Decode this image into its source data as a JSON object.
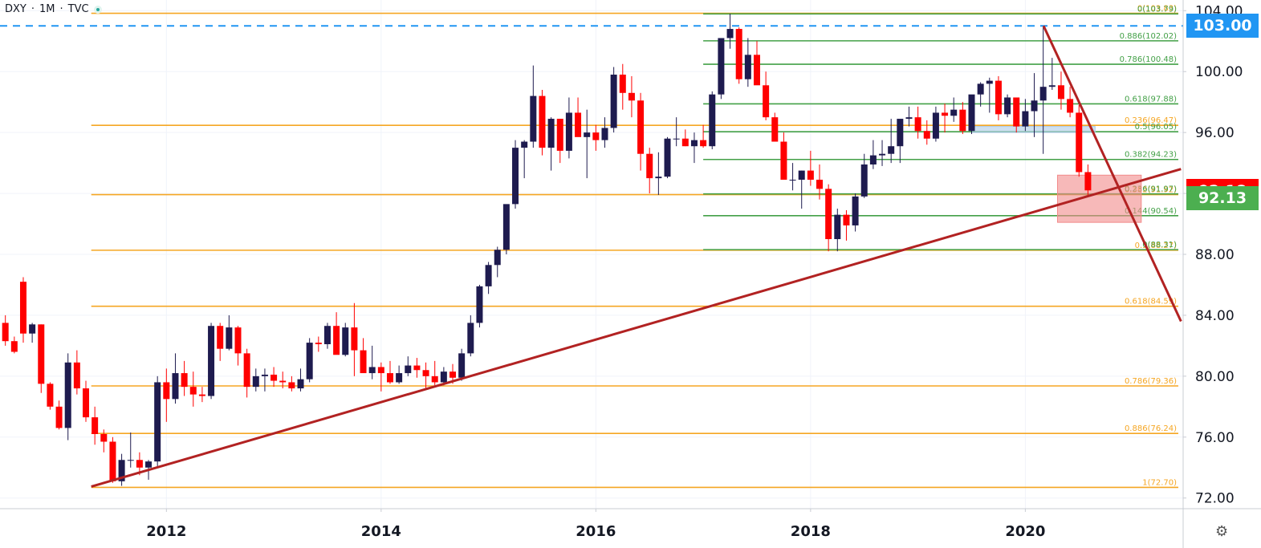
{
  "header": {
    "symbol": "DXY",
    "interval": "1M",
    "source": "TVC"
  },
  "price_tags": [
    {
      "label": "103.00",
      "color": "#2196f3",
      "price": 103.0
    },
    {
      "label": "92.18",
      "color": "#ff0000",
      "price": 92.18
    },
    {
      "label": "92.13",
      "color": "#4caf50",
      "price": 92.13
    }
  ],
  "chart_data": {
    "type": "candlestick",
    "title": "",
    "xlabel": "",
    "ylabel": "",
    "ylim": [
      71.3,
      104.7
    ],
    "y_ticks": [
      72,
      76,
      80,
      84,
      88,
      92,
      96,
      100,
      104
    ],
    "y_tick_labels": [
      "72.00",
      "76.00",
      "80.00",
      "84.00",
      "88.00",
      "92.00",
      "96.00",
      "100.00",
      "104.00"
    ],
    "x_ticks": [
      2012,
      2014,
      2016,
      2018,
      2020
    ],
    "x_tick_labels": [
      "2012",
      "2014",
      "2016",
      "2018",
      "2020"
    ],
    "xlim": [
      2010.45,
      2021.47
    ],
    "grid": true,
    "candles_first_month": [
      2010,
      7
    ],
    "candles_ohlc": [
      [
        83.5,
        84.0,
        82.0,
        82.3
      ],
      [
        82.3,
        82.6,
        81.5,
        81.6
      ],
      [
        86.2,
        86.5,
        82.2,
        82.8
      ],
      [
        82.8,
        83.5,
        82.2,
        83.4
      ],
      [
        83.4,
        83.4,
        78.9,
        79.5
      ],
      [
        79.5,
        79.6,
        77.8,
        78.0
      ],
      [
        78.0,
        78.4,
        76.5,
        76.6
      ],
      [
        76.6,
        81.5,
        75.8,
        80.9
      ],
      [
        80.9,
        81.7,
        78.8,
        79.2
      ],
      [
        79.2,
        79.7,
        77.0,
        77.3
      ],
      [
        77.3,
        78.0,
        75.5,
        76.2
      ],
      [
        76.2,
        76.5,
        75.0,
        75.7
      ],
      [
        75.7,
        76.0,
        73.0,
        73.1
      ],
      [
        73.1,
        74.9,
        72.8,
        74.5
      ],
      [
        74.5,
        76.3,
        74.0,
        74.5
      ],
      [
        74.5,
        75.0,
        73.5,
        74.0
      ],
      [
        74.0,
        74.5,
        73.2,
        74.4
      ],
      [
        74.4,
        80.0,
        74.0,
        79.6
      ],
      [
        79.6,
        80.5,
        77.0,
        78.5
      ],
      [
        78.5,
        81.5,
        78.2,
        80.2
      ],
      [
        80.2,
        81.0,
        78.7,
        79.3
      ],
      [
        79.3,
        80.3,
        78.0,
        78.8
      ],
      [
        78.8,
        79.3,
        78.3,
        78.7
      ],
      [
        78.7,
        83.5,
        78.5,
        83.3
      ],
      [
        83.3,
        83.5,
        81.0,
        81.8
      ],
      [
        81.8,
        84.0,
        81.7,
        83.2
      ],
      [
        83.2,
        83.3,
        80.7,
        81.5
      ],
      [
        81.5,
        81.8,
        78.6,
        79.3
      ],
      [
        79.3,
        80.5,
        79.0,
        80.0
      ],
      [
        80.0,
        80.5,
        79.0,
        80.1
      ],
      [
        80.1,
        80.6,
        79.3,
        79.7
      ],
      [
        79.7,
        80.3,
        79.2,
        79.6
      ],
      [
        79.6,
        80.0,
        79.0,
        79.2
      ],
      [
        79.2,
        80.5,
        79.0,
        79.8
      ],
      [
        79.8,
        82.5,
        79.6,
        82.2
      ],
      [
        82.2,
        82.6,
        81.6,
        82.1
      ],
      [
        82.1,
        83.5,
        81.8,
        83.3
      ],
      [
        83.3,
        84.2,
        81.5,
        81.4
      ],
      [
        81.4,
        83.5,
        81.3,
        83.2
      ],
      [
        83.2,
        84.8,
        80.0,
        81.7
      ],
      [
        81.7,
        82.5,
        80.5,
        80.2
      ],
      [
        80.2,
        82.0,
        79.8,
        80.6
      ],
      [
        80.6,
        80.9,
        79.0,
        80.2
      ],
      [
        80.2,
        81.0,
        79.5,
        79.6
      ],
      [
        79.6,
        80.7,
        79.5,
        80.2
      ],
      [
        80.2,
        81.3,
        80.0,
        80.7
      ],
      [
        80.7,
        81.2,
        79.9,
        80.4
      ],
      [
        80.4,
        80.9,
        79.2,
        80.0
      ],
      [
        80.0,
        81.0,
        79.4,
        79.6
      ],
      [
        79.6,
        80.6,
        79.4,
        80.3
      ],
      [
        80.3,
        80.8,
        79.5,
        79.9
      ],
      [
        79.9,
        81.8,
        79.7,
        81.5
      ],
      [
        81.5,
        84.0,
        81.3,
        83.5
      ],
      [
        83.5,
        86.0,
        83.2,
        85.9
      ],
      [
        85.9,
        87.5,
        85.4,
        87.3
      ],
      [
        87.3,
        88.5,
        86.5,
        88.3
      ],
      [
        88.3,
        90.8,
        88.0,
        91.3
      ],
      [
        91.3,
        95.5,
        91.0,
        95.0
      ],
      [
        95.0,
        95.5,
        93.0,
        95.4
      ],
      [
        95.4,
        100.4,
        95.0,
        98.4
      ],
      [
        98.4,
        98.8,
        94.5,
        95.0
      ],
      [
        95.0,
        97.0,
        93.5,
        96.9
      ],
      [
        96.9,
        96.9,
        94.0,
        94.8
      ],
      [
        94.8,
        98.3,
        94.3,
        97.3
      ],
      [
        97.3,
        98.3,
        96.0,
        95.7
      ],
      [
        95.7,
        97.5,
        93.0,
        96.0
      ],
      [
        96.0,
        96.5,
        94.8,
        95.5
      ],
      [
        95.5,
        97.0,
        95.0,
        96.3
      ],
      [
        96.3,
        100.3,
        96.0,
        99.8
      ],
      [
        99.8,
        100.5,
        97.5,
        98.6
      ],
      [
        98.6,
        99.7,
        97.0,
        98.1
      ],
      [
        98.1,
        98.6,
        93.5,
        94.6
      ],
      [
        94.6,
        95.0,
        92.0,
        93.0
      ],
      [
        93.0,
        94.7,
        91.9,
        93.1
      ],
      [
        93.1,
        95.7,
        93.0,
        95.6
      ],
      [
        95.6,
        97.0,
        95.1,
        95.6
      ],
      [
        95.6,
        96.2,
        95.1,
        95.1
      ],
      [
        95.1,
        96.0,
        94.0,
        95.5
      ],
      [
        95.5,
        96.5,
        95.0,
        95.1
      ],
      [
        95.1,
        98.7,
        94.9,
        98.5
      ],
      [
        98.5,
        101.8,
        98.2,
        102.2
      ],
      [
        102.2,
        103.8,
        101.5,
        102.8
      ],
      [
        102.8,
        102.9,
        99.2,
        99.5
      ],
      [
        99.5,
        102.2,
        99.0,
        101.1
      ],
      [
        101.1,
        102.0,
        99.5,
        99.1
      ],
      [
        99.1,
        100.0,
        96.8,
        97.0
      ],
      [
        97.0,
        97.3,
        95.5,
        95.4
      ],
      [
        95.4,
        96.0,
        93.0,
        92.9
      ],
      [
        92.9,
        94.0,
        92.2,
        92.9
      ],
      [
        92.9,
        93.5,
        91.0,
        93.5
      ],
      [
        93.5,
        94.8,
        92.5,
        92.9
      ],
      [
        92.9,
        93.9,
        91.6,
        92.3
      ],
      [
        92.3,
        92.6,
        88.2,
        89.0
      ],
      [
        89.0,
        91.0,
        88.2,
        90.6
      ],
      [
        90.6,
        90.9,
        88.9,
        89.9
      ],
      [
        89.9,
        92.0,
        89.5,
        91.8
      ],
      [
        91.8,
        94.6,
        91.7,
        93.9
      ],
      [
        93.9,
        95.5,
        93.6,
        94.5
      ],
      [
        94.5,
        95.5,
        93.8,
        94.6
      ],
      [
        94.6,
        96.9,
        94.0,
        95.1
      ],
      [
        95.1,
        96.5,
        94.0,
        96.9
      ],
      [
        96.9,
        97.7,
        96.4,
        97.0
      ],
      [
        97.0,
        97.7,
        95.6,
        96.1
      ],
      [
        96.1,
        96.8,
        95.2,
        95.6
      ],
      [
        95.6,
        97.7,
        95.4,
        97.3
      ],
      [
        97.3,
        97.9,
        96.0,
        97.1
      ],
      [
        97.1,
        98.3,
        96.7,
        97.5
      ],
      [
        97.5,
        98.0,
        95.9,
        96.1
      ],
      [
        96.1,
        98.3,
        95.9,
        98.5
      ],
      [
        98.5,
        99.3,
        97.7,
        99.2
      ],
      [
        99.2,
        99.6,
        97.3,
        99.4
      ],
      [
        99.4,
        99.7,
        96.8,
        97.2
      ],
      [
        97.2,
        98.5,
        97.0,
        98.3
      ],
      [
        98.3,
        98.3,
        96.0,
        96.4
      ],
      [
        96.4,
        98.2,
        96.1,
        97.4
      ],
      [
        97.4,
        99.9,
        95.7,
        98.1
      ],
      [
        98.1,
        102.99,
        94.6,
        99.0
      ],
      [
        99.0,
        100.9,
        98.8,
        99.1
      ],
      [
        99.1,
        100.0,
        97.5,
        98.2
      ],
      [
        98.2,
        99.0,
        97.0,
        97.3
      ],
      [
        97.3,
        97.8,
        93.1,
        93.4
      ],
      [
        93.4,
        93.9,
        91.8,
        92.2
      ]
    ],
    "fibonacci_retracements": [
      {
        "color": "#f5a623",
        "levels": [
          {
            "ratio": "0",
            "price": 103.83,
            "label": "0(103.83)"
          },
          {
            "ratio": "0.236",
            "price": 96.47,
            "label": "0.236(96.47)"
          },
          {
            "ratio": "0.382",
            "price": 91.92,
            "label": "0.382(91.92)"
          },
          {
            "ratio": "0.5",
            "price": 88.27,
            "label": "0.5(88.27)"
          },
          {
            "ratio": "0.618",
            "price": 84.59,
            "label": "0.618(84.59)"
          },
          {
            "ratio": "0.786",
            "price": 79.36,
            "label": "0.786(79.36)"
          },
          {
            "ratio": "0.886",
            "price": 76.24,
            "label": "0.886(76.24)"
          },
          {
            "ratio": "1",
            "price": 72.7,
            "label": "1(72.70)"
          }
        ]
      },
      {
        "color": "#43a047",
        "levels": [
          {
            "ratio": "0",
            "price": 103.79,
            "label": "0(103.79)"
          },
          {
            "ratio": "0.886",
            "price": 102.02,
            "label": "0.886(102.02)"
          },
          {
            "ratio": "0.786",
            "price": 100.48,
            "label": "0.786(100.48)"
          },
          {
            "ratio": "0.618",
            "price": 97.88,
            "label": "0.618(97.88)"
          },
          {
            "ratio": "0.5",
            "price": 96.05,
            "label": "0.5(96.05)"
          },
          {
            "ratio": "0.382",
            "price": 94.23,
            "label": "0.382(94.23)"
          },
          {
            "ratio": "0.236",
            "price": 91.97,
            "label": "0.236(91.97)"
          },
          {
            "ratio": "0.144",
            "price": 90.54,
            "label": "0.144(90.54)"
          },
          {
            "ratio": "0",
            "price": 88.31,
            "label": "0(88.31)"
          }
        ]
      }
    ],
    "horizontal_levels": [
      {
        "price": 103.0,
        "style": "dashed",
        "color": "#2196f3"
      }
    ],
    "trendlines": [
      {
        "from": [
          2011.3,
          72.75
        ],
        "to": [
          2021.45,
          93.6
        ],
        "color": "#b22222"
      },
      {
        "from": [
          2020.17,
          103.0
        ],
        "to": [
          2021.45,
          83.6
        ],
        "color": "#b22222"
      }
    ],
    "zones": [
      {
        "x": [
          2019.5,
          2020.65
        ],
        "y": [
          96.0,
          96.4
        ],
        "color": "#aecbe8"
      },
      {
        "x": [
          2020.3,
          2021.08
        ],
        "y": [
          90.1,
          93.2
        ],
        "color": "#f28b8b"
      }
    ],
    "colors": {
      "up": "#1e1b4f",
      "down": "#ff0000",
      "axis_text": "#131722",
      "axis_line": "#c9ccd3"
    }
  }
}
